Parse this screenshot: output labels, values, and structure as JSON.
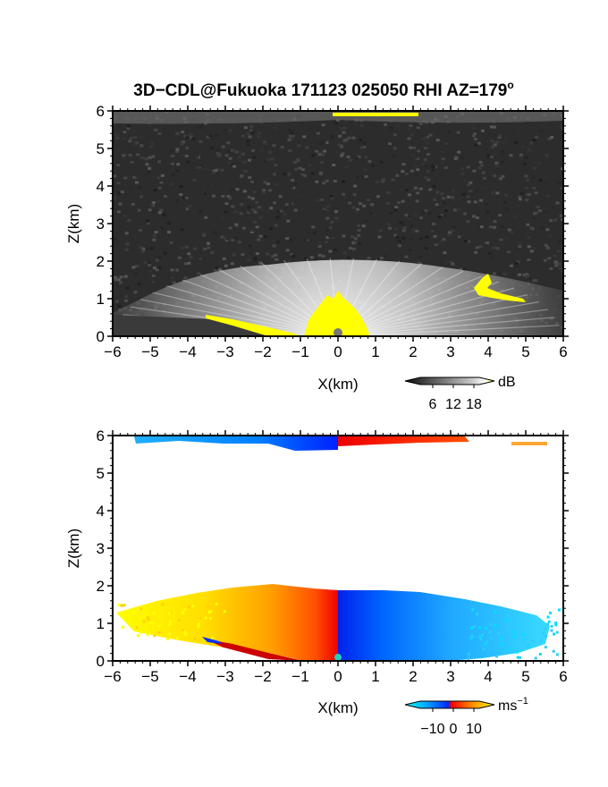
{
  "figure": {
    "title_prefix": "3D−CDL@Fukuoka 171123 025050 RHI AZ=179",
    "title_degree": "o"
  },
  "chart_data": [
    {
      "type": "heatmap",
      "name": "reflectivity-rhi",
      "xlabel": "X(km)",
      "ylabel": "Z(km)",
      "xlim": [
        -6,
        6
      ],
      "ylim": [
        0,
        6
      ],
      "xticks": [
        -6,
        -5,
        -4,
        -3,
        -2,
        -1,
        0,
        1,
        2,
        3,
        4,
        5,
        6
      ],
      "yticks": [
        0,
        1,
        2,
        3,
        4,
        5,
        6
      ],
      "xtick_labels": [
        "−6",
        "−5",
        "−4",
        "−3",
        "−2",
        "−1",
        "0",
        "1",
        "2",
        "3",
        "4",
        "5",
        "6"
      ],
      "ytick_labels": [
        "0",
        "1",
        "2",
        "3",
        "4",
        "5",
        "6"
      ],
      "colorbar": {
        "unit": "dB",
        "ticks": [
          6,
          12,
          18
        ],
        "tick_labels": [
          "6",
          "12",
          "18"
        ],
        "colors": [
          "#0a0a0a",
          "#4a4a4a",
          "#8a8a8a",
          "#c8c8c8",
          "#ffffff",
          "#ffff00"
        ]
      },
      "features": {
        "echo_top_km": 2.0,
        "strong_echo_center_km": 0.0,
        "upper_echo_height_km": 5.9
      },
      "colors": {
        "background": "#2c2c2c",
        "strong": "#ffff00"
      }
    },
    {
      "type": "heatmap",
      "name": "doppler-velocity-rhi",
      "xlabel": "X(km)",
      "ylabel": "Z(km)",
      "xlim": [
        -6,
        6
      ],
      "ylim": [
        0,
        6
      ],
      "xticks": [
        -6,
        -5,
        -4,
        -3,
        -2,
        -1,
        0,
        1,
        2,
        3,
        4,
        5,
        6
      ],
      "yticks": [
        0,
        1,
        2,
        3,
        4,
        5,
        6
      ],
      "xtick_labels": [
        "−6",
        "−5",
        "−4",
        "−3",
        "−2",
        "−1",
        "0",
        "1",
        "2",
        "3",
        "4",
        "5",
        "6"
      ],
      "ytick_labels": [
        "0",
        "1",
        "2",
        "3",
        "4",
        "5",
        "6"
      ],
      "colorbar": {
        "unit": "ms",
        "unit_exponent": "−1",
        "ticks": [
          -10,
          0,
          10
        ],
        "tick_labels": [
          "−10",
          "0",
          "10"
        ],
        "colors": [
          "#00ffff",
          "#00a0ff",
          "#0028ff",
          "#ff0000",
          "#ff8c00",
          "#ffff00"
        ]
      },
      "features": {
        "left_side_velocity_ms": 10,
        "right_side_velocity_ms": -10,
        "echo_top_km": 1.9
      }
    }
  ]
}
